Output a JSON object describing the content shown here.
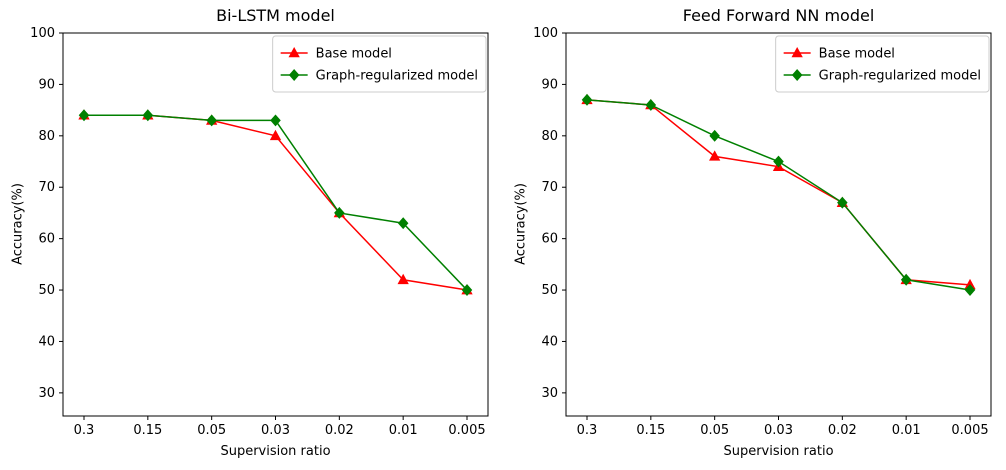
{
  "chart_data": [
    {
      "type": "line",
      "title": "Bi-LSTM model",
      "xlabel": "Supervision ratio",
      "ylabel": "Accuracy(%)",
      "categories": [
        "0.3",
        "0.15",
        "0.05",
        "0.03",
        "0.02",
        "0.01",
        "0.005"
      ],
      "series": [
        {
          "name": "Base model",
          "color": "#ff0000",
          "marker": "triangle",
          "values": [
            84,
            84,
            83,
            80,
            65,
            52,
            50
          ]
        },
        {
          "name": "Graph-regularized model",
          "color": "#008000",
          "marker": "diamond",
          "values": [
            84,
            84,
            83,
            83,
            65,
            63,
            50
          ]
        }
      ],
      "ylim": [
        25.5,
        100
      ],
      "yticks": [
        30,
        40,
        50,
        60,
        70,
        80,
        90,
        100
      ],
      "legend_position": "upper right",
      "grid": false
    },
    {
      "type": "line",
      "title": "Feed Forward NN model",
      "xlabel": "Supervision ratio",
      "ylabel": "Accuracy(%)",
      "categories": [
        "0.3",
        "0.15",
        "0.05",
        "0.03",
        "0.02",
        "0.01",
        "0.005"
      ],
      "series": [
        {
          "name": "Base model",
          "color": "#ff0000",
          "marker": "triangle",
          "values": [
            87,
            86,
            76,
            74,
            67,
            52,
            51
          ]
        },
        {
          "name": "Graph-regularized model",
          "color": "#008000",
          "marker": "diamond",
          "values": [
            87,
            86,
            80,
            75,
            67,
            52,
            50
          ]
        }
      ],
      "ylim": [
        25.5,
        100
      ],
      "yticks": [
        30,
        40,
        50,
        60,
        70,
        80,
        90,
        100
      ],
      "legend_position": "upper right",
      "grid": false
    }
  ]
}
